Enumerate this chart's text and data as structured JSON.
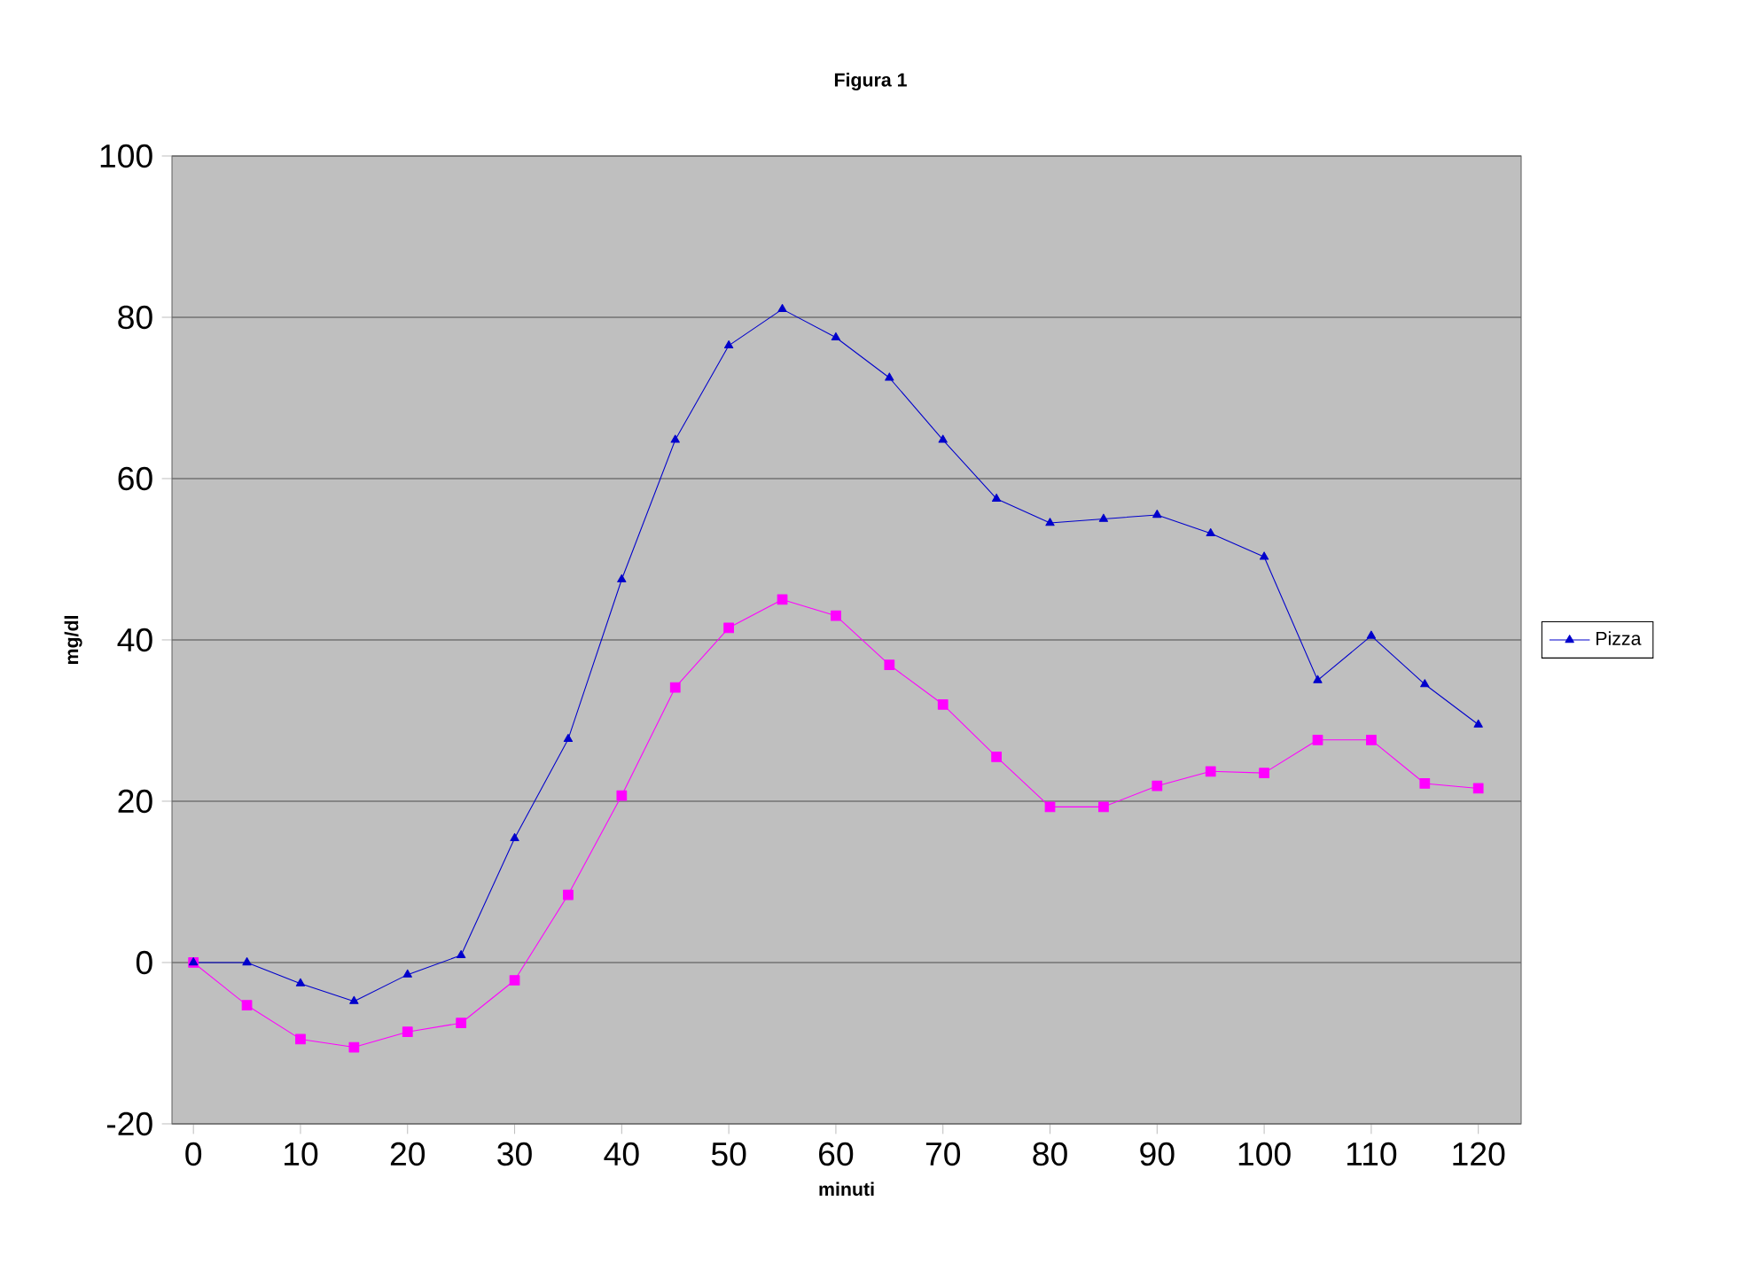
{
  "chart_data": {
    "type": "line",
    "title": "Figura 1",
    "xlabel": "minuti",
    "ylabel": "mg/dl",
    "x": [
      0,
      5,
      10,
      15,
      20,
      25,
      30,
      35,
      40,
      45,
      50,
      55,
      60,
      65,
      70,
      75,
      80,
      85,
      90,
      95,
      100,
      105,
      110,
      115,
      120
    ],
    "series": [
      {
        "color": "#ff00ff",
        "marker": "square",
        "values": [
          0,
          -5.3,
          -9.5,
          -10.5,
          -8.6,
          -7.5,
          -2.2,
          8.4,
          20.7,
          34.1,
          41.5,
          45,
          43,
          36.9,
          32,
          25.5,
          19.3,
          19.3,
          21.9,
          23.7,
          23.5,
          27.6,
          27.6,
          22.2,
          21.6
        ]
      },
      {
        "name": "Pizza",
        "color": "#0000cc",
        "marker": "triangle",
        "values": [
          0,
          0,
          -2.6,
          -4.8,
          -1.5,
          0.9,
          15.4,
          27.7,
          47.5,
          64.8,
          76.5,
          81,
          77.5,
          72.5,
          64.8,
          57.5,
          54.5,
          55,
          55.5,
          53.2,
          50.3,
          35,
          40.5,
          34.5,
          29.5
        ]
      }
    ],
    "xlim": [
      -2,
      124
    ],
    "ylim": [
      -20,
      100
    ],
    "xticks": [
      0,
      10,
      20,
      30,
      40,
      50,
      60,
      70,
      80,
      90,
      100,
      110,
      120
    ],
    "yticks": [
      -20,
      0,
      20,
      40,
      60,
      80,
      100
    ],
    "grid": "y",
    "legend": "right",
    "line_style": "solid"
  }
}
